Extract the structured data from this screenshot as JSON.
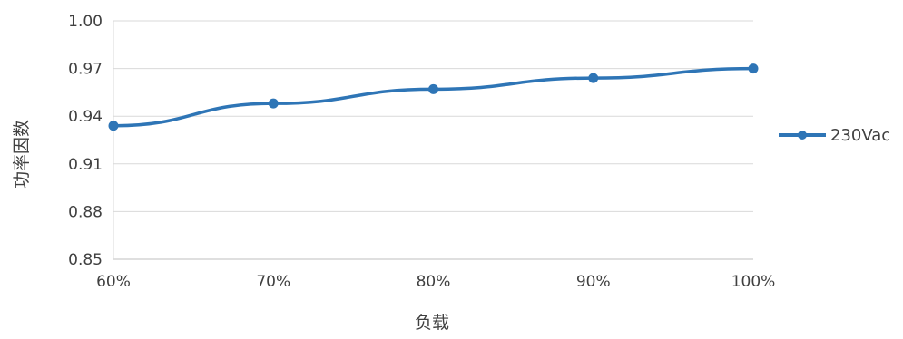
{
  "chart_data": {
    "type": "line",
    "categories": [
      "60%",
      "70%",
      "80%",
      "90%",
      "100%"
    ],
    "series": [
      {
        "name": "230Vac",
        "values": [
          0.934,
          0.948,
          0.957,
          0.964,
          0.97
        ]
      }
    ],
    "y_ticks": [
      "0.85",
      "0.88",
      "0.91",
      "0.94",
      "0.97",
      "1.00"
    ],
    "ylim": [
      0.85,
      1.0
    ],
    "xlabel": "负载",
    "ylabel": "功率因数",
    "grid": "horizontal",
    "legend_position": "right",
    "colors": {
      "series": "#2e75b6",
      "grid": "#d9d9d9",
      "text": "#404040"
    }
  }
}
